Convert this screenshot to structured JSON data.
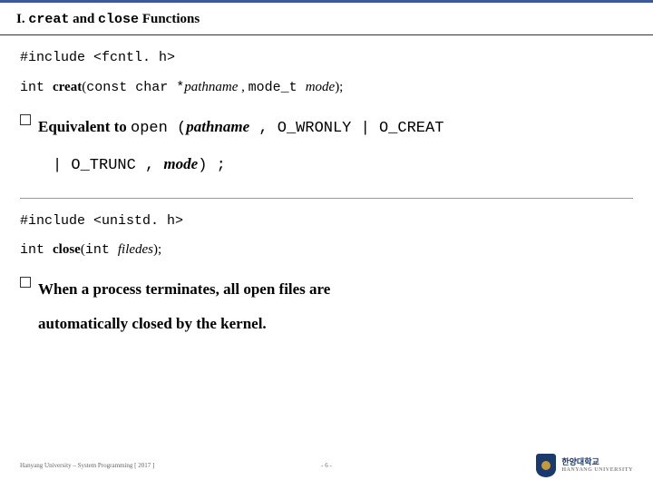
{
  "colors": {
    "accent_top": "#3b5998",
    "title_underline": "#333333",
    "hr": "#999999",
    "logo_shield": "#1a3a6e",
    "logo_inner": "#c49a3a",
    "footer_text": "#666666"
  },
  "title": {
    "roman": "I. ",
    "code1": "creat",
    "mid": " and ",
    "code2": "close",
    "tail": " Functions"
  },
  "block1": {
    "include": "#include <fcntl. h>",
    "sig_rtype": "int ",
    "sig_fname": "creat",
    "sig_open": "(",
    "sig_p1_type": "const char *",
    "sig_p1_name": "pathname",
    "sig_sep1": " , ",
    "sig_p2_type": "mode_t ",
    "sig_p2_name": "mode",
    "sig_close": ");"
  },
  "bullet1": {
    "lead": "Equivalent to ",
    "c1": "open (",
    "i1": "pathname",
    "c2": " ,  O_WRONLY | O_CREAT",
    "line2_c1": "| O_TRUNC ,  ",
    "line2_i1": "mode",
    "line2_c2": ") ;"
  },
  "block2": {
    "include": "#include <unistd. h>",
    "sig_rtype": "int ",
    "sig_fname": "close",
    "sig_open": "(",
    "sig_p1_type": "int ",
    "sig_p1_name": "filedes",
    "sig_close": ");"
  },
  "bullet2": {
    "line1": "When a process terminates, all open files are",
    "line2": "automatically closed by the kernel."
  },
  "footer": {
    "left": "Hanyang University – System Programming  [ 2017 ]",
    "center": "- 6 -",
    "uni_kr": "한양대학교",
    "uni_en": "HANYANG UNIVERSITY"
  }
}
